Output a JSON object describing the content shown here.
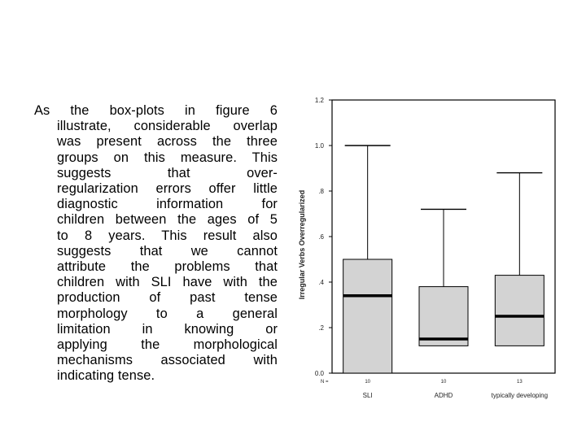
{
  "paragraph_lines": [
    "As the box-plots in figure 6",
    "illustrate, considerable overlap",
    "was present across the three",
    "groups on this measure. This",
    "suggests that over-",
    "regularization errors offer little",
    "diagnostic information for",
    "children between the ages of 5",
    "to 8 years. This result also",
    "suggests that we cannot",
    "attribute the problems that",
    "children with SLI have with the",
    "production of past tense",
    "morphology to a general",
    "limitation in knowing or",
    "applying the morphological",
    "mechanisms associated with",
    "indicating tense."
  ],
  "chart_data": {
    "type": "box",
    "ylabel": "Irregular Verbs Overregularized",
    "ylim": [
      0,
      1.2
    ],
    "yticks": [
      {
        "value": 0.0,
        "label": "0.0"
      },
      {
        "value": 0.2,
        "label": ".2"
      },
      {
        "value": 0.4,
        "label": ".4"
      },
      {
        "value": 0.6,
        "label": ".6"
      },
      {
        "value": 0.8,
        "label": ".8"
      },
      {
        "value": 1.0,
        "label": "1.0"
      },
      {
        "value": 1.2,
        "label": "1.2"
      }
    ],
    "n_label": "N =",
    "box_color": "#d3d3d3",
    "groups": [
      {
        "label": "SLI",
        "n": "10",
        "min": 0.0,
        "q1": 0.0,
        "median": 0.34,
        "q3": 0.5,
        "max": 1.0
      },
      {
        "label": "ADHD",
        "n": "10",
        "min": 0.12,
        "q1": 0.12,
        "median": 0.15,
        "q3": 0.38,
        "max": 0.72
      },
      {
        "label": "typically developing",
        "n": "13",
        "min": 0.12,
        "q1": 0.12,
        "median": 0.25,
        "q3": 0.43,
        "max": 0.88
      }
    ]
  }
}
